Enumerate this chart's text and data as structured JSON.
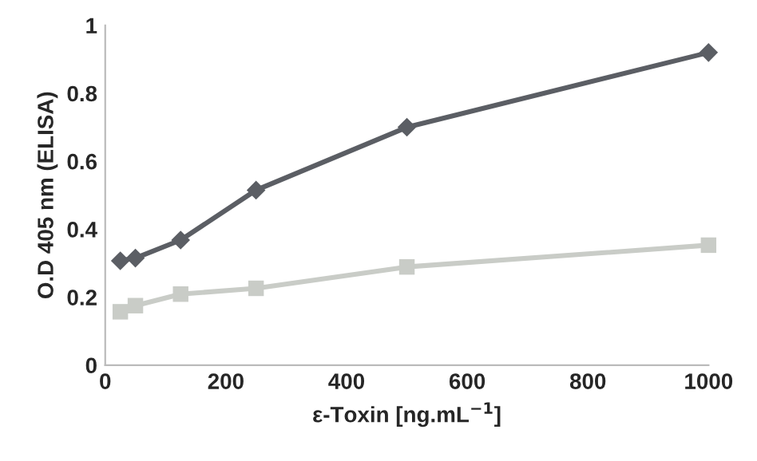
{
  "chart_data": {
    "type": "line",
    "xlabel": "ε-Toxin [ng.mL$^{−1}$]",
    "ylabel": "O.D 405 nm (ELISA)",
    "x": [
      25,
      50,
      125,
      250,
      500,
      1000
    ],
    "series": [
      {
        "color": "#5b5e64",
        "marker": "diamond",
        "values": [
          0.307,
          0.315,
          0.368,
          0.515,
          0.7,
          0.92
        ]
      },
      {
        "color": "#c9ccc7",
        "marker": "square",
        "values": [
          0.157,
          0.175,
          0.209,
          0.226,
          0.289,
          0.353
        ]
      }
    ],
    "xlim": [
      0,
      1000
    ],
    "xticks": [
      0,
      200,
      400,
      600,
      800,
      1000
    ],
    "ylim": [
      0,
      1
    ],
    "yticks": [
      0,
      0.2,
      0.4,
      0.6,
      0.8,
      1
    ],
    "grid": false,
    "legend": false,
    "line_style": "solid"
  }
}
